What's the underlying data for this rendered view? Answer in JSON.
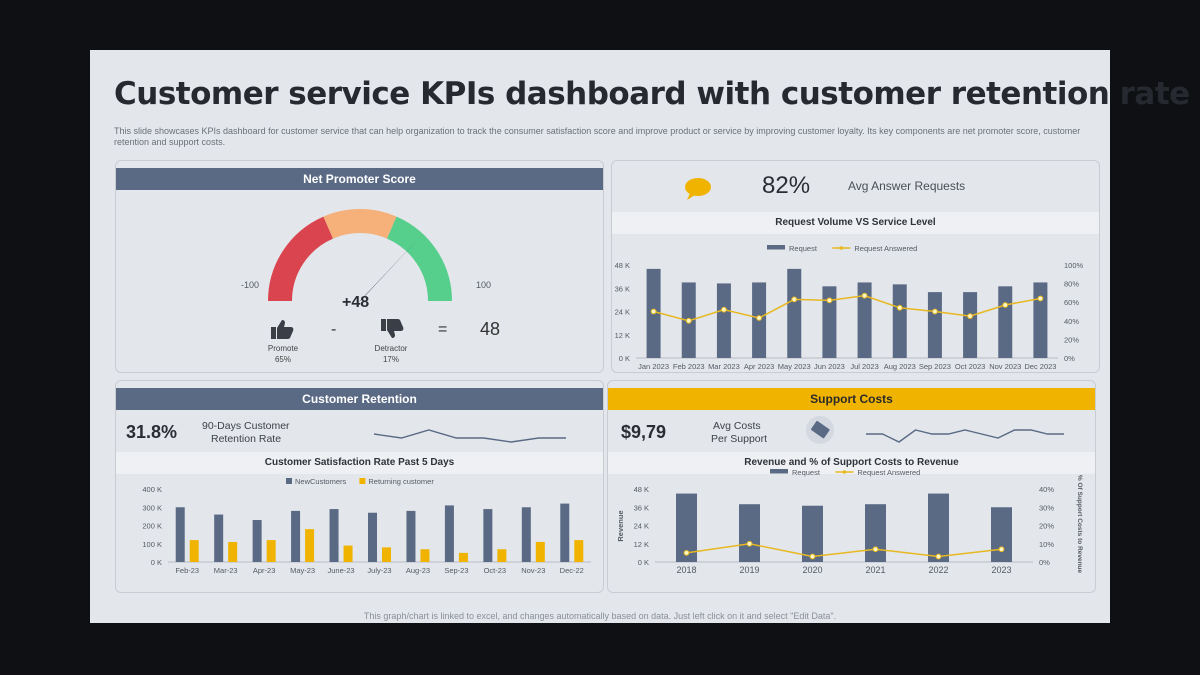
{
  "title": "Customer service KPIs dashboard with customer retention rate",
  "description": "This slide showcases KPIs dashboard for customer service that can help organization to track the consumer satisfaction score and improve product or service by improving customer loyalty. Its key components are net promoter score, customer retention and support costs.",
  "footer": "This graph/chart is linked to excel, and changes automatically based on data. Just left click on it and select \"Edit Data\".",
  "nps": {
    "header": "Net Promoter Score",
    "min_label": "-100",
    "max_label": "100",
    "score_label": "+48",
    "score_value": 48,
    "promote_label": "Promote",
    "promote_pct": "65%",
    "minus": "-",
    "detractor_label": "Detractor",
    "detractor_pct": "17%",
    "equals": "=",
    "result": "48",
    "colors": {
      "low": "#d9444f",
      "mid": "#f6b07a",
      "high": "#57cf8c",
      "needle": "#3a3f47"
    }
  },
  "requests": {
    "kpi_value": "82%",
    "kpi_label": "Avg Answer Requests",
    "icon": "chat-bubble-icon",
    "chart_title": "Request Volume VS Service Level"
  },
  "retention": {
    "header": "Customer Retention",
    "kpi_value": "31.8%",
    "kpi_label_1": "90-Days Customer",
    "kpi_label_2": "Retention Rate",
    "chart_title": "Customer Satisfaction Rate Past 5 Days"
  },
  "support": {
    "header": "Support Costs",
    "kpi_value": "$9,79",
    "kpi_label_1": "Avg Costs",
    "kpi_label_2": "Per Support",
    "icon": "money-icon",
    "chart_title": "Revenue and % of Support Costs to Revenue"
  },
  "chart_data": [
    {
      "id": "request_volume",
      "type": "bar",
      "title": "Request Volume VS Service Level",
      "categories": [
        "Jan 2023",
        "Feb 2023",
        "Mar 2023",
        "Apr 2023",
        "May 2023",
        "Jun 2023",
        "Jul 2023",
        "Aug 2023",
        "Sep 2023",
        "Oct 2023",
        "Nov 2023",
        "Dec 2023"
      ],
      "series": [
        {
          "name": "Request",
          "type": "bar",
          "axis": "left",
          "color": "#5a6a85",
          "values": [
            46000,
            39000,
            38500,
            39000,
            46000,
            37000,
            39000,
            38000,
            34000,
            34000,
            37000,
            39000
          ]
        },
        {
          "name": "Request Answered",
          "type": "line",
          "axis": "right",
          "color": "#e8b820",
          "values": [
            50,
            40,
            52,
            43,
            63,
            62,
            67,
            54,
            50,
            45,
            57,
            64
          ]
        }
      ],
      "ylim": [
        0,
        48000
      ],
      "yticks": [
        "0 K",
        "12 K",
        "24 K",
        "36 K",
        "48 K"
      ],
      "y2lim": [
        0,
        100
      ],
      "y2ticks": [
        "0%",
        "20%",
        "40%",
        "60%",
        "80%",
        "100%"
      ],
      "legend": "top"
    },
    {
      "id": "satisfaction",
      "type": "bar",
      "title": "Customer Satisfaction Rate Past 5 Days",
      "categories": [
        "Feb-23",
        "Mar-23",
        "Apr-23",
        "May-23",
        "June-23",
        "July-23",
        "Aug-23",
        "Sep-23",
        "Oct-23",
        "Nov-23",
        "Dec-22"
      ],
      "series": [
        {
          "name": "NewCustomers",
          "color": "#5a6a85",
          "values": [
            300000,
            260000,
            230000,
            280000,
            290000,
            270000,
            280000,
            310000,
            290000,
            300000,
            320000
          ]
        },
        {
          "name": "Returning customer",
          "color": "#f0b400",
          "values": [
            120000,
            110000,
            120000,
            180000,
            90000,
            80000,
            70000,
            50000,
            70000,
            110000,
            120000
          ]
        }
      ],
      "ylim": [
        0,
        400000
      ],
      "yticks": [
        "0 K",
        "100 K",
        "200 K",
        "300 K",
        "400 K"
      ],
      "legend": "top"
    },
    {
      "id": "support_revenue",
      "type": "bar",
      "title": "Revenue and % of Support Costs to Revenue",
      "categories": [
        "2018",
        "2019",
        "2020",
        "2021",
        "2022",
        "2023"
      ],
      "series": [
        {
          "name": "Request",
          "type": "bar",
          "axis": "left",
          "color": "#5a6a85",
          "values": [
            45000,
            38000,
            37000,
            38000,
            45000,
            36000
          ]
        },
        {
          "name": "Request Answered",
          "type": "line",
          "axis": "right",
          "color": "#e8b820",
          "values": [
            5,
            10,
            3,
            7,
            3,
            7
          ]
        }
      ],
      "ylim": [
        0,
        48000
      ],
      "yticks": [
        "0 K",
        "12 K",
        "24 K",
        "36 K",
        "48 K"
      ],
      "y2lim": [
        0,
        40
      ],
      "y2ticks": [
        "0%",
        "10%",
        "20%",
        "30%",
        "40%"
      ],
      "ylabel": "Revenue",
      "y2label": "% Of Support Costs to Revenue",
      "legend": "top"
    },
    {
      "id": "retention_sparkline",
      "type": "line",
      "values": [
        5,
        4,
        6,
        4,
        4,
        3,
        4,
        4
      ]
    },
    {
      "id": "support_sparkline",
      "type": "line",
      "values": [
        5,
        5,
        3,
        6,
        5,
        5,
        6,
        5,
        4,
        6,
        6,
        5,
        5
      ]
    }
  ]
}
